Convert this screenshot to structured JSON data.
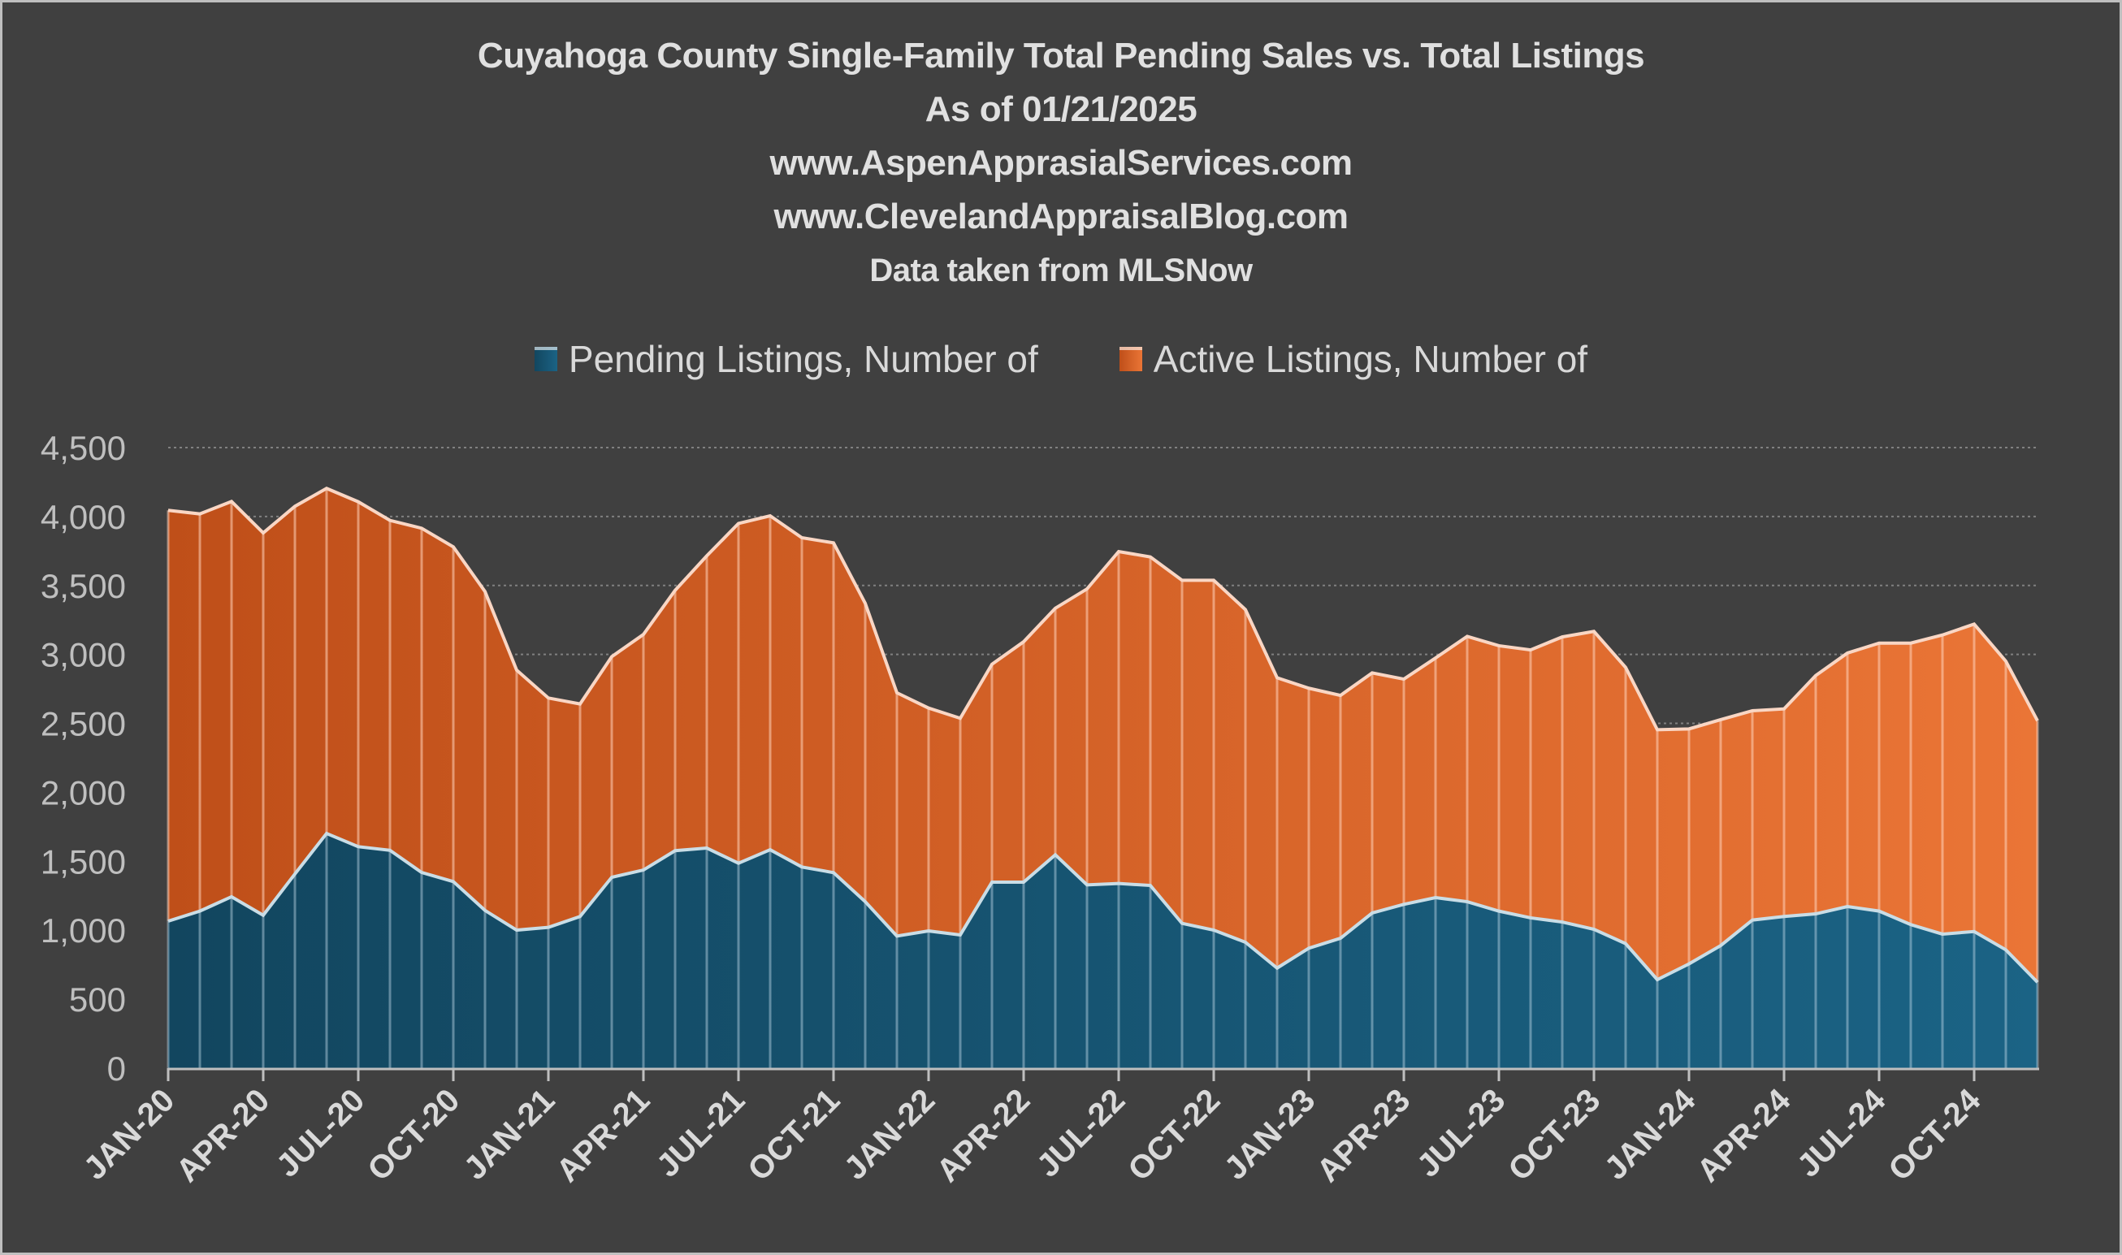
{
  "title": {
    "line1": "Cuyahoga County Single-Family Total Pending Sales vs. Total Listings",
    "line2": "As of 01/21/2025",
    "line3": "www.AspenApprasialServices.com",
    "line4": "www.ClevelandAppraisalBlog.com",
    "line5": "Data taken from MLSNow"
  },
  "legend": {
    "pending_label": "Pending Listings, Number of",
    "active_label": "Active Listings, Number of"
  },
  "colors": {
    "background": "#404040",
    "border": "#bfbfbf",
    "pending_start": "#12465f",
    "pending_end": "#1b6385",
    "active_start": "#bf4f19",
    "active_end": "#ea7536",
    "gridline": "#808080",
    "axis": "#bfbfbf"
  },
  "chart_data": {
    "type": "area",
    "stacked": true,
    "title": "Cuyahoga County Single-Family Total Pending Sales vs. Total Listings",
    "subtitle": "As of 01/21/2025 | www.AspenApprasialServices.com | www.ClevelandAppraisalBlog.com | Data taken from MLSNow",
    "xlabel": "",
    "ylabel": "",
    "ylim": [
      0,
      4500
    ],
    "yticks": [
      0,
      500,
      1000,
      1500,
      2000,
      2500,
      3000,
      3500,
      4000,
      4500
    ],
    "ytick_labels": [
      "0",
      "500",
      "1,000",
      "1,500",
      "2,000",
      "2,500",
      "3,000",
      "3,500",
      "4,000",
      "4,500"
    ],
    "grid": "horizontal dotted",
    "legend_position": "top",
    "xtick_labels": [
      "JAN-20",
      "APR-20",
      "JUL-20",
      "OCT-20",
      "JAN-21",
      "APR-21",
      "JUL-21",
      "OCT-21",
      "JAN-22",
      "APR-22",
      "JUL-22",
      "OCT-22",
      "JAN-23",
      "APR-23",
      "JUL-23",
      "OCT-23",
      "JAN-24",
      "APR-24",
      "JUL-24",
      "OCT-24"
    ],
    "x": [
      "JAN-20",
      "FEB-20",
      "MAR-20",
      "APR-20",
      "MAY-20",
      "JUN-20",
      "JUL-20",
      "AUG-20",
      "SEP-20",
      "OCT-20",
      "NOV-20",
      "DEC-20",
      "JAN-21",
      "FEB-21",
      "MAR-21",
      "APR-21",
      "MAY-21",
      "JUN-21",
      "JUL-21",
      "AUG-21",
      "SEP-21",
      "OCT-21",
      "NOV-21",
      "DEC-21",
      "JAN-22",
      "FEB-22",
      "MAR-22",
      "APR-22",
      "MAY-22",
      "JUN-22",
      "JUL-22",
      "AUG-22",
      "SEP-22",
      "OCT-22",
      "NOV-22",
      "DEC-22",
      "JAN-23",
      "FEB-23",
      "MAR-23",
      "APR-23",
      "MAY-23",
      "JUN-23",
      "JUL-23",
      "AUG-23",
      "SEP-23",
      "OCT-23",
      "NOV-23",
      "DEC-23",
      "JAN-24",
      "FEB-24",
      "MAR-24",
      "APR-24",
      "MAY-24",
      "JUN-24",
      "JUL-24",
      "AUG-24",
      "SEP-24",
      "OCT-24",
      "NOV-24",
      "DEC-24"
    ],
    "series": [
      {
        "name": "Pending Listings, Number of",
        "values": [
          1066,
          1139,
          1243,
          1109,
          1408,
          1702,
          1606,
          1580,
          1419,
          1353,
          1144,
          1001,
          1021,
          1100,
          1384,
          1437,
          1577,
          1596,
          1486,
          1584,
          1459,
          1418,
          1207,
          958,
          995,
          966,
          1349,
          1349,
          1547,
          1329,
          1339,
          1325,
          1050,
          1001,
          913,
          726,
          870,
          942,
          1125,
          1188,
          1237,
          1207,
          1139,
          1090,
          1060,
          1007,
          903,
          642,
          756,
          889,
          1074,
          1100,
          1119,
          1172,
          1139,
          1041,
          972,
          991,
          858,
          623
        ]
      },
      {
        "name": "Active Listings, Number of",
        "values": [
          2979,
          2880,
          2866,
          2772,
          2666,
          2502,
          2501,
          2392,
          2496,
          2427,
          2312,
          1885,
          1663,
          1541,
          1600,
          1708,
          1888,
          2119,
          2464,
          2421,
          2387,
          2391,
          2164,
          1764,
          1616,
          1571,
          1580,
          1743,
          1788,
          2146,
          2407,
          2382,
          2488,
          2537,
          2412,
          2105,
          1885,
          1761,
          1741,
          1633,
          1737,
          1924,
          1924,
          1943,
          2067,
          2160,
          2003,
          1812,
          1704,
          1638,
          1518,
          1505,
          1728,
          1838,
          1943,
          2041,
          2169,
          2229,
          2093,
          1896
        ]
      }
    ],
    "totals": [
      4045,
      4019,
      4109,
      3881,
      4074,
      4204,
      4107,
      3972,
      3915,
      3780,
      3456,
      2886,
      2684,
      2641,
      2984,
      3145,
      3465,
      3715,
      3950,
      4005,
      3846,
      3809,
      3371,
      2722,
      2611,
      2537,
      2929,
      3092,
      3335,
      3475,
      3746,
      3707,
      3538,
      3538,
      3325,
      2831,
      2755,
      2703,
      2866,
      2821,
      2974,
      3131,
      3063,
      3033,
      3127,
      3167,
      2906,
      2454,
      2460,
      2527,
      2592,
      2605,
      2847,
      3010,
      3082,
      3082,
      3141,
      3220,
      2951,
      2519
    ]
  }
}
